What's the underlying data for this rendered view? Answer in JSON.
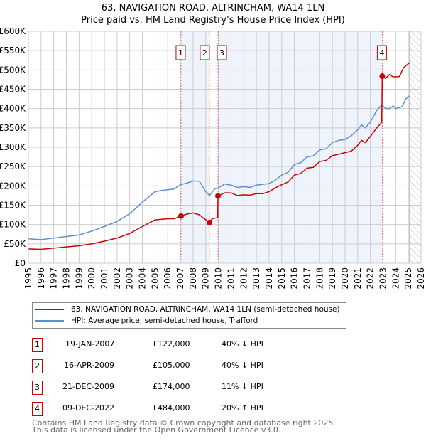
{
  "chart_data": {
    "type": "line",
    "title": "63, NAVIGATION ROAD, ALTRINCHAM, WA14 1LN",
    "subtitle": "Price paid vs. HM Land Registry's House Price Index (HPI)",
    "xlim": [
      1995,
      2026
    ],
    "ylim": [
      0,
      600000
    ],
    "x_ticks": [
      "1995",
      "1996",
      "1997",
      "1998",
      "1999",
      "2000",
      "2001",
      "2002",
      "2003",
      "2004",
      "2005",
      "2006",
      "2007",
      "2008",
      "2009",
      "2010",
      "2011",
      "2012",
      "2013",
      "2014",
      "2015",
      "2016",
      "2017",
      "2018",
      "2019",
      "2020",
      "2021",
      "2022",
      "2023",
      "2024",
      "2025",
      "2026"
    ],
    "y_ticks": [
      {
        "v": 0,
        "l": "£0"
      },
      {
        "v": 50000,
        "l": "£50K"
      },
      {
        "v": 100000,
        "l": "£100K"
      },
      {
        "v": 150000,
        "l": "£150K"
      },
      {
        "v": 200000,
        "l": "£200K"
      },
      {
        "v": 250000,
        "l": "£250K"
      },
      {
        "v": 300000,
        "l": "£300K"
      },
      {
        "v": 350000,
        "l": "£350K"
      },
      {
        "v": 400000,
        "l": "£400K"
      },
      {
        "v": 450000,
        "l": "£450K"
      },
      {
        "v": 500000,
        "l": "£500K"
      },
      {
        "v": 550000,
        "l": "£550K"
      },
      {
        "v": 600000,
        "l": "£600K"
      }
    ],
    "grid": true,
    "series": [
      {
        "name": "63, NAVIGATION ROAD, ALTRINCHAM, WA14 1LN (semi-detached house)",
        "color": "#cc0000",
        "x": [
          1995,
          1996,
          1997,
          1998,
          1999,
          2000,
          2001,
          2002,
          2003,
          2004,
          2005,
          2006,
          2006.5,
          2007.05,
          2007.5,
          2008,
          2008.5,
          2009.29,
          2009.5,
          2009.95,
          2009.97,
          2010.5,
          2011,
          2011.5,
          2012,
          2012.5,
          2013,
          2013.5,
          2014,
          2014.5,
          2015,
          2015.5,
          2016,
          2016.5,
          2017,
          2017.5,
          2018,
          2018.5,
          2019,
          2019.5,
          2020,
          2020.5,
          2021,
          2021.3,
          2021.6,
          2022,
          2022.5,
          2022.9,
          2022.94,
          2023.2,
          2023.5,
          2023.8,
          2024.3,
          2024.6,
          2025.1
        ],
        "y": [
          37000,
          36000,
          39000,
          42000,
          45000,
          50000,
          57000,
          65000,
          77000,
          95000,
          112000,
          115000,
          115000,
          122000,
          127000,
          130000,
          125000,
          105000,
          115000,
          118000,
          174000,
          182000,
          182000,
          175000,
          177000,
          176000,
          180000,
          180000,
          185000,
          195000,
          203000,
          210000,
          228000,
          232000,
          246000,
          248000,
          263000,
          266000,
          278000,
          282000,
          286000,
          290000,
          305000,
          318000,
          312000,
          328000,
          350000,
          365000,
          484000,
          478000,
          488000,
          482000,
          483000,
          505000,
          519000
        ]
      },
      {
        "name": "HPI: Average price, semi-detached house, Trafford",
        "color": "#5b8fd4",
        "x": [
          1995,
          1996,
          1997,
          1998,
          1999,
          2000,
          2001,
          2002,
          2003,
          2004,
          2005,
          2005.5,
          2006,
          2006.5,
          2007,
          2007.5,
          2008,
          2008.5,
          2009,
          2009.3,
          2009.7,
          2010,
          2010.5,
          2011,
          2011.5,
          2012,
          2012.5,
          2013,
          2014,
          2014.5,
          2015,
          2015.5,
          2016,
          2016.5,
          2017,
          2017.5,
          2018,
          2018.5,
          2019,
          2019.5,
          2020,
          2020.5,
          2021,
          2021.3,
          2021.6,
          2022,
          2022.5,
          2022.9,
          2023.2,
          2023.5,
          2023.8,
          2024,
          2024.5,
          2024.8,
          2025.1
        ],
        "y": [
          63000,
          61000,
          65000,
          69000,
          73000,
          83000,
          95000,
          108000,
          128000,
          158000,
          185000,
          188000,
          190000,
          192000,
          203000,
          207000,
          213000,
          212000,
          185000,
          175000,
          192000,
          195000,
          205000,
          202000,
          196000,
          198000,
          196000,
          202000,
          206000,
          215000,
          228000,
          235000,
          255000,
          260000,
          275000,
          278000,
          293000,
          296000,
          312000,
          318000,
          320000,
          330000,
          345000,
          358000,
          350000,
          365000,
          395000,
          410000,
          400000,
          400000,
          407000,
          400000,
          405000,
          425000,
          433000
        ]
      }
    ],
    "sales": [
      {
        "n": "1",
        "x": 2007.05,
        "date": "19-JAN-2007",
        "price": "£122,000",
        "value": 122000,
        "hpi": "40% ↓ HPI"
      },
      {
        "n": "2",
        "x": 2009.29,
        "date": "16-APR-2009",
        "price": "£105,000",
        "value": 105000,
        "hpi": "40% ↓ HPI"
      },
      {
        "n": "3",
        "x": 2009.97,
        "date": "21-DEC-2009",
        "price": "£174,000",
        "value": 174000,
        "hpi": "11% ↓ HPI"
      },
      {
        "n": "4",
        "x": 2022.94,
        "date": "09-DEC-2022",
        "price": "£484,000",
        "value": 484000,
        "hpi": "20% ↑ HPI"
      }
    ],
    "forecast_start": 2025.1
  },
  "footer": [
    "Contains HM Land Registry data © Crown copyright and database right 2025.",
    "This data is licensed under the Open Government Licence v3.0."
  ]
}
